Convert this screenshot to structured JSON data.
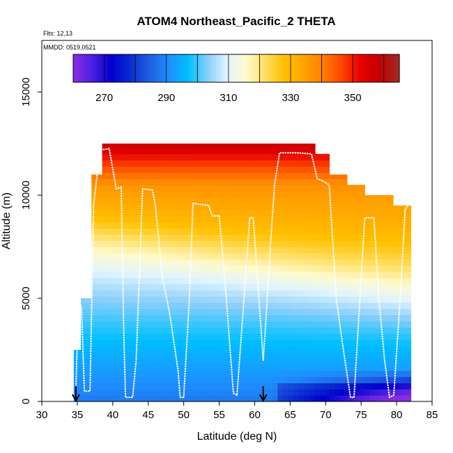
{
  "chart_data": {
    "type": "heatmap",
    "title": "ATOM4 Northeast_Pacific_2 THETA",
    "subtitle_lines": [
      "Flts: 12,13",
      "MMDD: 0519,0521"
    ],
    "xlabel": "Latitude (deg N)",
    "ylabel": "Altitude (m)",
    "xlim": [
      30,
      85
    ],
    "ylim": [
      0,
      17500
    ],
    "xticks": [
      30,
      35,
      40,
      45,
      50,
      55,
      60,
      65,
      70,
      75,
      80,
      85
    ],
    "yticks": [
      0,
      5000,
      10000,
      15000
    ],
    "colorbar": {
      "range": [
        260,
        365
      ],
      "ticks": [
        270,
        290,
        310,
        330,
        350
      ],
      "colors": [
        "#8a2be2",
        "#4b20e0",
        "#0000cd",
        "#0a2fd0",
        "#2060e0",
        "#1e90ff",
        "#00bfff",
        "#87cefa",
        "#e0f4ff",
        "#fffacd",
        "#ffe066",
        "#ffc000",
        "#ffa500",
        "#ff7f00",
        "#ff4500",
        "#e60000",
        "#c00000",
        "#a52a2a"
      ]
    },
    "flight_track": [
      [
        34.8,
        700
      ],
      [
        35.2,
        5000
      ],
      [
        35.6,
        4500
      ],
      [
        36.0,
        500
      ],
      [
        36.8,
        500
      ],
      [
        37.3,
        9500
      ],
      [
        37.8,
        11000
      ],
      [
        38.3,
        12200
      ],
      [
        39.5,
        12250
      ],
      [
        40.5,
        10300
      ],
      [
        41.2,
        10400
      ],
      [
        41.5,
        4000
      ],
      [
        41.8,
        200
      ],
      [
        42.8,
        200
      ],
      [
        43.3,
        2000
      ],
      [
        44.2,
        10300
      ],
      [
        45.6,
        10250
      ],
      [
        46.0,
        9500
      ],
      [
        47.0,
        6000
      ],
      [
        48.0,
        4300
      ],
      [
        49.2,
        1500
      ],
      [
        49.5,
        200
      ],
      [
        50.0,
        200
      ],
      [
        50.8,
        5000
      ],
      [
        51.3,
        9600
      ],
      [
        53.5,
        9500
      ],
      [
        54.0,
        9000
      ],
      [
        55.0,
        9000
      ],
      [
        56.0,
        5000
      ],
      [
        57.0,
        400
      ],
      [
        57.5,
        300
      ],
      [
        58.5,
        5000
      ],
      [
        59.3,
        8900
      ],
      [
        59.8,
        8900
      ],
      [
        60.5,
        5500
      ],
      [
        61.2,
        2000
      ],
      [
        61.5,
        3500
      ],
      [
        62.2,
        7500
      ],
      [
        62.8,
        10500
      ],
      [
        63.5,
        12050
      ],
      [
        66.0,
        12050
      ],
      [
        68.0,
        12000
      ],
      [
        68.8,
        10800
      ],
      [
        69.5,
        10700
      ],
      [
        70.5,
        10500
      ],
      [
        71.5,
        5000
      ],
      [
        72.5,
        2500
      ],
      [
        73.5,
        200
      ],
      [
        74.0,
        200
      ],
      [
        75.5,
        8900
      ],
      [
        76.8,
        8900
      ],
      [
        77.5,
        5000
      ],
      [
        78.3,
        2000
      ],
      [
        79.0,
        200
      ],
      [
        79.6,
        300
      ],
      [
        80.5,
        5000
      ],
      [
        81.2,
        9300
      ],
      [
        81.6,
        9500
      ]
    ],
    "arrows_at_latitude": [
      34.8,
      61.2
    ],
    "curtain_columns": [
      {
        "x0": 34.5,
        "x1": 35.5,
        "ytop": 2500
      },
      {
        "x0": 35.5,
        "x1": 37.0,
        "ytop": 5000
      },
      {
        "x0": 37.0,
        "x1": 38.5,
        "ytop": 11000
      },
      {
        "x0": 38.5,
        "x1": 68.5,
        "ytop": 12500
      },
      {
        "x0": 68.5,
        "x1": 70.5,
        "ytop": 12000
      },
      {
        "x0": 70.5,
        "x1": 73.0,
        "ytop": 11000
      },
      {
        "x0": 73.0,
        "x1": 75.5,
        "ytop": 10500
      },
      {
        "x0": 75.5,
        "x1": 79.5,
        "ytop": 10000
      },
      {
        "x0": 79.5,
        "x1": 82.0,
        "ytop": 9500
      }
    ]
  }
}
